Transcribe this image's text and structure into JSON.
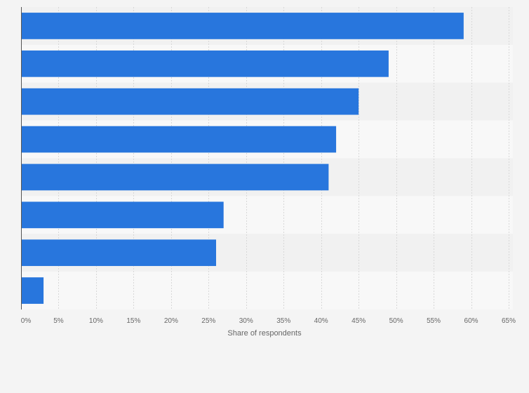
{
  "colors": {
    "background": "#f4f4f4",
    "band_dark": "#f1f1f1",
    "band_light": "#f8f8f8",
    "bar": "#2876dd",
    "grid": "#d8d8d8",
    "axis": "#555555",
    "tick_text": "#666666"
  },
  "chart_data": {
    "type": "bar",
    "orientation": "horizontal",
    "categories": [
      "",
      "",
      "",
      "",
      "",
      "",
      "",
      ""
    ],
    "values": [
      59,
      49,
      45,
      42,
      41,
      27,
      26,
      3
    ],
    "unit": "%",
    "xlabel": "Share of respondents",
    "ylabel": "",
    "xlim": [
      0,
      65
    ],
    "x_ticks": [
      0,
      5,
      10,
      15,
      20,
      25,
      30,
      35,
      40,
      45,
      50,
      55,
      60,
      65
    ],
    "x_tick_labels": [
      "0%",
      "5%",
      "10%",
      "15%",
      "20%",
      "25%",
      "30%",
      "35%",
      "40%",
      "45%",
      "50%",
      "55%",
      "60%",
      "65%"
    ],
    "grid": true,
    "legend": "none"
  }
}
